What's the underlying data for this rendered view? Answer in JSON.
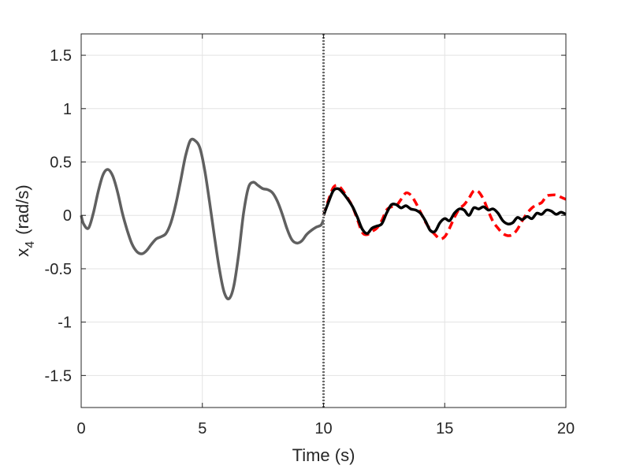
{
  "chart_data": {
    "type": "line",
    "title": "",
    "xlabel": "Time (s)",
    "ylabel_main": "x",
    "ylabel_sub": "4",
    "ylabel_unit": "(rad/s)",
    "xlim": [
      0,
      20
    ],
    "ylim": [
      -1.8,
      1.7
    ],
    "x_ticks": [
      0,
      5,
      10,
      15,
      20
    ],
    "x_tick_labels": [
      "0",
      "5",
      "10",
      "15",
      "20"
    ],
    "y_ticks": [
      -1.5,
      -1,
      -0.5,
      0,
      0.5,
      1,
      1.5
    ],
    "y_tick_labels": [
      "-1.5",
      "-1",
      "-0.5",
      "0",
      "0.5",
      "1",
      "1.5"
    ],
    "grid": true,
    "vertical_marker_x": 10,
    "colors": {
      "history": "#606060",
      "prediction": "#000000",
      "reference": "#ff0000",
      "marker": "#6b6b6b",
      "grid": "#e3e3e3",
      "axes": "#262626"
    },
    "series": [
      {
        "style": "solid-gray",
        "x": [
          0,
          0.1,
          0.3,
          0.5,
          0.7,
          0.9,
          1.1,
          1.3,
          1.5,
          1.7,
          1.9,
          2.1,
          2.3,
          2.5,
          2.7,
          2.9,
          3.1,
          3.3,
          3.5,
          3.7,
          3.9,
          4.1,
          4.3,
          4.5,
          4.7,
          4.9,
          5.1,
          5.3,
          5.5,
          5.7,
          5.9,
          6.1,
          6.3,
          6.5,
          6.7,
          6.9,
          7.1,
          7.3,
          7.5,
          7.7,
          7.9,
          8.1,
          8.3,
          8.5,
          8.7,
          8.9,
          9.1,
          9.3,
          9.5,
          9.7,
          9.9,
          10.0
        ],
        "values": [
          0.0,
          -0.08,
          -0.12,
          0.02,
          0.22,
          0.38,
          0.43,
          0.37,
          0.22,
          0.02,
          -0.14,
          -0.27,
          -0.34,
          -0.36,
          -0.33,
          -0.27,
          -0.22,
          -0.2,
          -0.17,
          -0.07,
          0.1,
          0.32,
          0.55,
          0.7,
          0.7,
          0.63,
          0.42,
          0.12,
          -0.2,
          -0.5,
          -0.72,
          -0.78,
          -0.66,
          -0.36,
          0.02,
          0.26,
          0.31,
          0.28,
          0.25,
          0.24,
          0.21,
          0.13,
          0.01,
          -0.13,
          -0.23,
          -0.26,
          -0.24,
          -0.18,
          -0.14,
          -0.11,
          -0.09,
          -0.04
        ]
      },
      {
        "style": "solid-black",
        "x": [
          10.0,
          10.2,
          10.4,
          10.6,
          10.8,
          11.0,
          11.2,
          11.4,
          11.6,
          11.8,
          12.0,
          12.2,
          12.4,
          12.6,
          12.8,
          13.0,
          13.2,
          13.4,
          13.6,
          13.8,
          14.0,
          14.2,
          14.4,
          14.6,
          14.8,
          15.0,
          15.2,
          15.4,
          15.6,
          15.8,
          16.0,
          16.2,
          16.4,
          16.6,
          16.8,
          17.0,
          17.2,
          17.4,
          17.6,
          17.8,
          18.0,
          18.2,
          18.4,
          18.6,
          18.8,
          19.0,
          19.2,
          19.4,
          19.6,
          19.8,
          20.0
        ],
        "values": [
          0.0,
          0.12,
          0.23,
          0.25,
          0.21,
          0.15,
          0.08,
          -0.02,
          -0.13,
          -0.17,
          -0.12,
          -0.1,
          -0.08,
          0.02,
          0.1,
          0.1,
          0.07,
          0.09,
          0.06,
          0.05,
          0.02,
          -0.05,
          -0.14,
          -0.15,
          -0.07,
          -0.03,
          -0.05,
          0.02,
          0.06,
          0.05,
          0.0,
          0.07,
          0.06,
          0.08,
          0.05,
          0.06,
          0.02,
          -0.05,
          -0.08,
          -0.07,
          -0.02,
          -0.04,
          -0.01,
          -0.03,
          0.02,
          0.01,
          0.05,
          0.04,
          0.01,
          0.03,
          0.01
        ]
      },
      {
        "style": "dashed-red",
        "x": [
          10.0,
          10.2,
          10.4,
          10.6,
          10.8,
          11.0,
          11.2,
          11.4,
          11.6,
          11.8,
          12.0,
          12.2,
          12.4,
          12.6,
          12.8,
          13.0,
          13.2,
          13.4,
          13.6,
          13.8,
          14.0,
          14.2,
          14.4,
          14.6,
          14.8,
          15.0,
          15.2,
          15.4,
          15.6,
          15.8,
          16.0,
          16.2,
          16.4,
          16.6,
          16.8,
          17.0,
          17.2,
          17.4,
          17.6,
          17.8,
          18.0,
          18.2,
          18.4,
          18.6,
          18.8,
          19.0,
          19.2,
          19.4,
          19.6,
          19.8,
          20.0
        ],
        "values": [
          0.0,
          0.14,
          0.26,
          0.28,
          0.23,
          0.16,
          0.08,
          -0.04,
          -0.16,
          -0.18,
          -0.15,
          -0.12,
          -0.05,
          0.05,
          0.08,
          0.09,
          0.15,
          0.21,
          0.19,
          0.12,
          0.03,
          -0.06,
          -0.13,
          -0.18,
          -0.22,
          -0.2,
          -0.12,
          -0.02,
          0.06,
          0.1,
          0.16,
          0.23,
          0.22,
          0.15,
          0.04,
          -0.06,
          -0.12,
          -0.17,
          -0.19,
          -0.18,
          -0.13,
          -0.05,
          0.02,
          0.07,
          0.1,
          0.12,
          0.18,
          0.19,
          0.19,
          0.17,
          0.15
        ]
      }
    ]
  }
}
